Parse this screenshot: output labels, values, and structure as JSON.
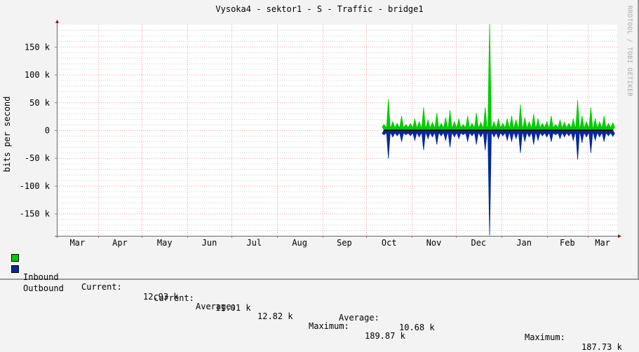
{
  "chart_data": {
    "type": "area",
    "title": "Vysoka4 - sektor1 - S - Traffic - bridge1",
    "ylabel": "bits per second",
    "xlabel": "",
    "watermark": "RRDTOOL / TOBI OETIKER",
    "xlim": [
      "2018-03-04",
      "2019-03-21"
    ],
    "ylim": [
      -190000,
      190000
    ],
    "grid": true,
    "y_ticks": [
      {
        "value": 150000,
        "label": "150 k"
      },
      {
        "value": 100000,
        "label": "100 k"
      },
      {
        "value": 50000,
        "label": "50 k"
      },
      {
        "value": 0,
        "label": "0"
      },
      {
        "value": -50000,
        "label": "-50 k"
      },
      {
        "value": -100000,
        "label": "-100 k"
      },
      {
        "value": -150000,
        "label": "-150 k"
      }
    ],
    "x_ticks": [
      {
        "month": "2018-03",
        "label": "Mar"
      },
      {
        "month": "2018-04",
        "label": "Apr"
      },
      {
        "month": "2018-05",
        "label": "May"
      },
      {
        "month": "2018-06",
        "label": "Jun"
      },
      {
        "month": "2018-07",
        "label": "Jul"
      },
      {
        "month": "2018-08",
        "label": "Aug"
      },
      {
        "month": "2018-09",
        "label": "Sep"
      },
      {
        "month": "2018-10",
        "label": "Oct"
      },
      {
        "month": "2018-11",
        "label": "Nov"
      },
      {
        "month": "2018-12",
        "label": "Dec"
      },
      {
        "month": "2019-01",
        "label": "Jan"
      },
      {
        "month": "2019-02",
        "label": "Feb"
      },
      {
        "month": "2019-03",
        "label": "Mar"
      }
    ],
    "x": [
      "2018-10-13",
      "2018-10-16",
      "2018-10-19",
      "2018-10-22",
      "2018-10-25",
      "2018-10-28",
      "2018-10-31",
      "2018-11-03",
      "2018-11-06",
      "2018-11-09",
      "2018-11-12",
      "2018-11-15",
      "2018-11-18",
      "2018-11-21",
      "2018-11-24",
      "2018-11-27",
      "2018-11-30",
      "2018-12-03",
      "2018-12-06",
      "2018-12-09",
      "2018-12-12",
      "2018-12-15",
      "2018-12-18",
      "2018-12-21",
      "2018-12-24",
      "2018-12-27",
      "2018-12-30",
      "2019-01-02",
      "2019-01-05",
      "2019-01-08",
      "2019-01-11",
      "2019-01-14",
      "2019-01-17",
      "2019-01-20",
      "2019-01-23",
      "2019-01-26",
      "2019-01-29",
      "2019-02-01",
      "2019-02-04",
      "2019-02-07",
      "2019-02-10",
      "2019-02-13",
      "2019-02-16",
      "2019-02-19",
      "2019-02-22",
      "2019-02-25",
      "2019-02-28",
      "2019-03-03",
      "2019-03-06",
      "2019-03-09",
      "2019-03-12",
      "2019-03-15",
      "2019-03-18"
    ],
    "series": [
      {
        "name": "Inbound",
        "color": "#00cc00",
        "direction": "up",
        "values": [
          10000,
          55000,
          15000,
          12000,
          25000,
          10000,
          12000,
          20000,
          15000,
          40000,
          18000,
          14000,
          30000,
          12000,
          22000,
          35000,
          15000,
          20000,
          10000,
          25000,
          12000,
          30000,
          14000,
          40000,
          190000,
          15000,
          20000,
          12000,
          20000,
          25000,
          18000,
          45000,
          22000,
          15000,
          28000,
          20000,
          12000,
          15000,
          25000,
          10000,
          18000,
          14000,
          12000,
          20000,
          53000,
          25000,
          15000,
          40000,
          20000,
          15000,
          25000,
          12000,
          13000
        ]
      },
      {
        "name": "Outbound",
        "color": "#002a97",
        "direction": "down",
        "values": [
          8000,
          50000,
          12000,
          10000,
          20000,
          8000,
          10000,
          18000,
          12000,
          35000,
          15000,
          12000,
          25000,
          10000,
          18000,
          30000,
          12000,
          15000,
          8000,
          20000,
          10000,
          25000,
          12000,
          35000,
          188000,
          12000,
          15000,
          10000,
          18000,
          20000,
          15000,
          40000,
          20000,
          12000,
          25000,
          18000,
          10000,
          12000,
          20000,
          8000,
          15000,
          12000,
          10000,
          18000,
          52000,
          22000,
          12000,
          40000,
          18000,
          12000,
          20000,
          10000,
          11000
        ]
      }
    ],
    "legend": {
      "placement": "bottom-left",
      "inbound": {
        "name": "Inbound",
        "color": "#00cc00",
        "current_label": "Current:",
        "current": "12.93 k",
        "average_label": "Average:",
        "average": "12.82 k",
        "maximum_label": "Maximum:",
        "maximum": "189.87 k"
      },
      "outbound": {
        "name": "Outbound",
        "color": "#002a97",
        "current_label": "Current:",
        "current": "11.01 k",
        "average_label": "Average:",
        "average": "10.68 k",
        "maximum_label": "Maximum:",
        "maximum": "187.73 k"
      }
    }
  }
}
